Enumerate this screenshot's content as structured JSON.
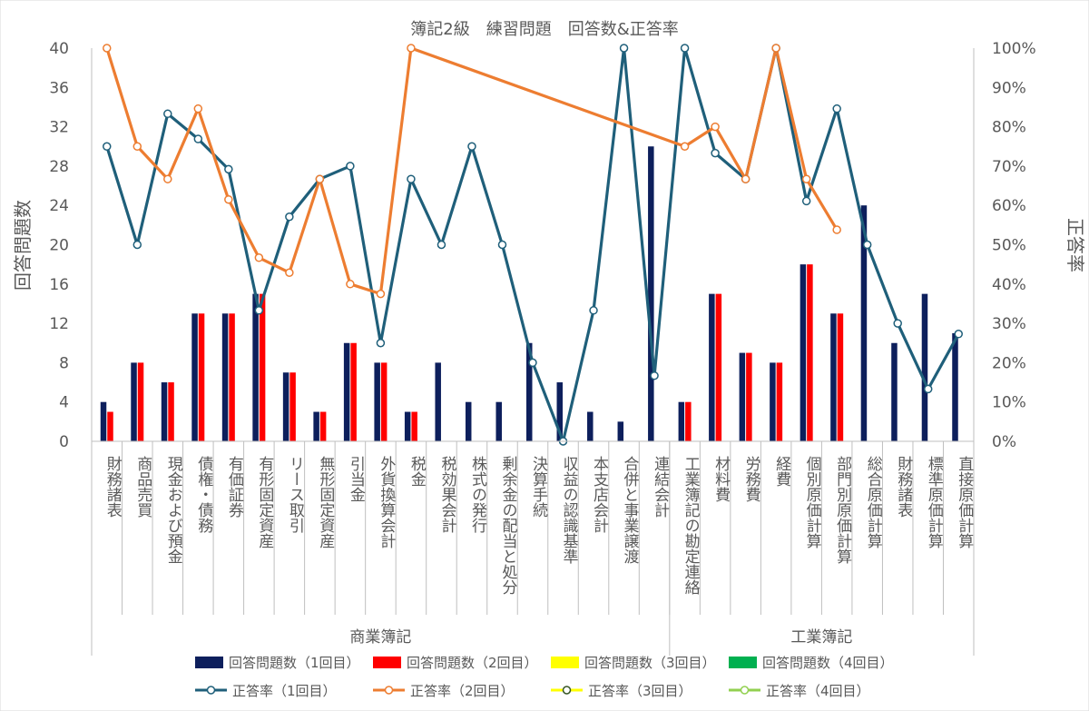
{
  "chart_data": {
    "type": "bar+line",
    "title": "簿記2級　練習問題　回答数&正答率",
    "ylabel_left": "回答問題数",
    "ylabel_right": "正答率",
    "ylim_left": [
      0,
      40
    ],
    "ylim_right": [
      0,
      1
    ],
    "left_ticks": [
      "0",
      "4",
      "8",
      "12",
      "16",
      "20",
      "24",
      "28",
      "32",
      "36",
      "40"
    ],
    "right_ticks": [
      "0%",
      "10%",
      "20%",
      "30%",
      "40%",
      "50%",
      "60%",
      "70%",
      "80%",
      "90%",
      "100%"
    ],
    "grid": false,
    "legend_position": "bottom",
    "categories": [
      "財務諸表",
      "商品売買",
      "現金および預金",
      "債権・債務",
      "有価証券",
      "有形固定資産",
      "リース取引",
      "無形固定資産",
      "引当金",
      "外貨換算会計",
      "税金",
      "税効果会計",
      "株式の発行",
      "剰余金の配当と処分",
      "決算手続",
      "収益の認識基準",
      "本支店会計",
      "合併と事業譲渡",
      "連結会計",
      "工業簿記の勘定連絡",
      "材料費",
      "労務費",
      "経費",
      "個別原価計算",
      "部門別原価計算",
      "総合原価計算",
      "財務諸表",
      "標準原価計算",
      "直接原価計算"
    ],
    "groups": [
      {
        "label": "商業簿記",
        "count": 19
      },
      {
        "label": "工業簿記",
        "count": 10
      }
    ],
    "bar_series": [
      {
        "name": "回答問題数（1回目）",
        "color": "#0d1f5c",
        "values": [
          4,
          8,
          6,
          13,
          13,
          15,
          7,
          3,
          10,
          8,
          3,
          8,
          4,
          4,
          10,
          6,
          3,
          2,
          30,
          4,
          15,
          9,
          8,
          18,
          13,
          24,
          10,
          15,
          11
        ]
      },
      {
        "name": "回答問題数（2回目）",
        "color": "#ff0000",
        "values": [
          3,
          8,
          6,
          13,
          13,
          15,
          7,
          3,
          10,
          8,
          3,
          null,
          null,
          null,
          null,
          null,
          null,
          null,
          null,
          4,
          15,
          9,
          8,
          18,
          13,
          null,
          null,
          null,
          null
        ]
      },
      {
        "name": "回答問題数（3回目）",
        "color": "#ffff00",
        "values": []
      },
      {
        "name": "回答問題数（4回目）",
        "color": "#00b050",
        "values": []
      }
    ],
    "line_series": [
      {
        "name": "正答率（1回目）",
        "color": "#1f5f7a",
        "values": [
          0.75,
          0.5,
          0.833,
          0.769,
          0.692,
          0.333,
          0.571,
          0.667,
          0.7,
          0.25,
          0.667,
          0.5,
          0.75,
          0.5,
          0.2,
          0.0,
          0.333,
          1.0,
          0.167,
          1.0,
          0.733,
          0.667,
          1.0,
          0.611,
          0.846,
          0.5,
          0.3,
          0.133,
          0.273
        ]
      },
      {
        "name": "正答率（2回目）",
        "color": "#ed7d31",
        "values": [
          1.0,
          0.75,
          0.667,
          0.846,
          0.615,
          0.467,
          0.429,
          0.667,
          0.4,
          0.375,
          1.0,
          null,
          null,
          null,
          null,
          null,
          null,
          null,
          null,
          0.75,
          0.8,
          0.667,
          1.0,
          0.667,
          0.538,
          null,
          null,
          null,
          null
        ]
      },
      {
        "name": "正答率（3回目）",
        "color": "#ffff00",
        "values": []
      },
      {
        "name": "正答率（4回目）",
        "color": "#92d050",
        "values": []
      }
    ]
  }
}
